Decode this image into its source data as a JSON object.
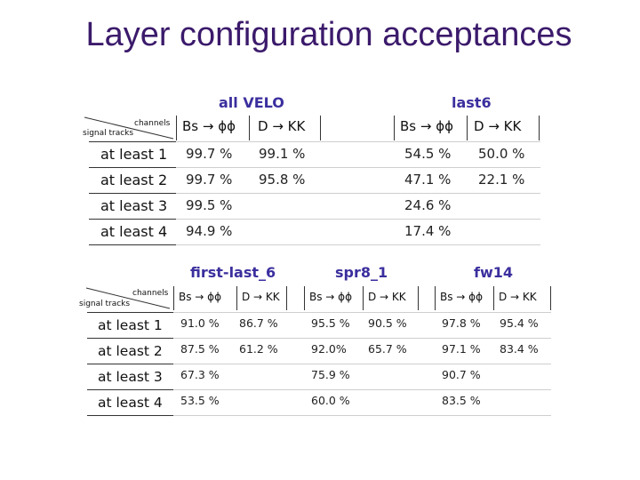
{
  "title": "Layer configuration acceptances",
  "table1": {
    "groups": [
      "all VELO",
      "last6"
    ],
    "corner": {
      "top": "channels",
      "bottom": "signal tracks"
    },
    "col_heads": [
      "Bs → ϕϕ",
      "D → KK",
      "Bs → ϕϕ",
      "D → KK"
    ],
    "rows": [
      {
        "label": "at least 1",
        "values": [
          "99.7 %",
          "99.1 %",
          "54.5 %",
          "50.0 %"
        ]
      },
      {
        "label": "at least 2",
        "values": [
          "99.7 %",
          "95.8 %",
          "47.1 %",
          "22.1 %"
        ]
      },
      {
        "label": "at least 3",
        "values": [
          "99.5 %",
          "",
          "24.6 %",
          ""
        ]
      },
      {
        "label": "at least 4",
        "values": [
          "94.9 %",
          "",
          "17.4 %",
          ""
        ]
      }
    ]
  },
  "table2": {
    "groups": [
      "first-last_6",
      "spr8_1",
      "fw14"
    ],
    "corner": {
      "top": "channels",
      "bottom": "signal tracks"
    },
    "col_heads": [
      "Bs → ϕϕ",
      "D → KK",
      "Bs → ϕϕ",
      "D → KK",
      "Bs → ϕϕ",
      "D → KK"
    ],
    "rows": [
      {
        "label": "at least 1",
        "values": [
          "91.0 %",
          "86.7 %",
          "95.5 %",
          "90.5 %",
          "97.8 %",
          "95.4 %"
        ]
      },
      {
        "label": "at least 2",
        "values": [
          "87.5 %",
          "61.2 %",
          "92.0%",
          "65.7 %",
          "97.1 %",
          "83.4 %"
        ]
      },
      {
        "label": "at least 3",
        "values": [
          "67.3 %",
          "",
          "75.9 %",
          "",
          "90.7 %",
          ""
        ]
      },
      {
        "label": "at least 4",
        "values": [
          "53.5 %",
          "",
          "60.0 %",
          "",
          "83.5 %",
          ""
        ]
      }
    ]
  }
}
